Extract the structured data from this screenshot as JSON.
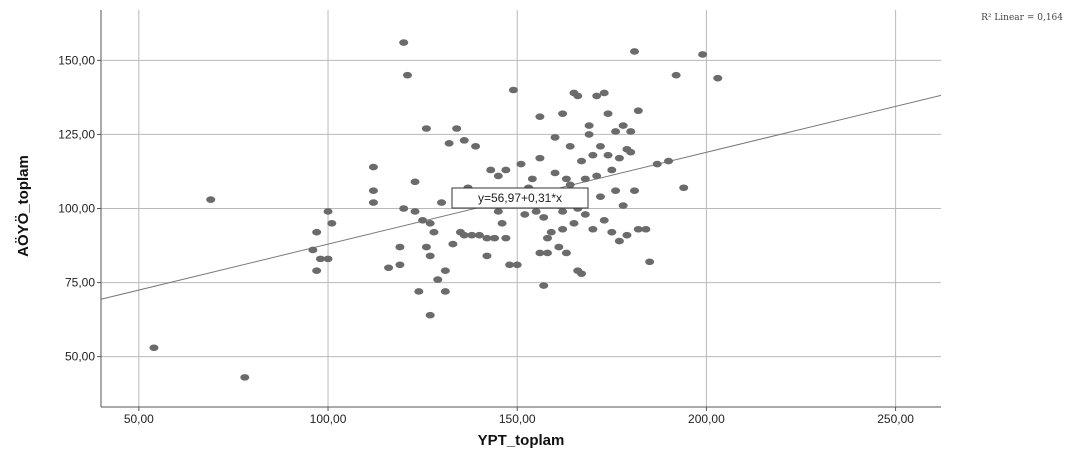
{
  "chart_data": {
    "type": "scatter",
    "xlabel": "YPT_toplam",
    "ylabel": "AÖYÖ_toplam",
    "xlim": [
      40,
      262
    ],
    "ylim": [
      33,
      167
    ],
    "x_ticks": [
      50,
      100,
      150,
      200,
      250
    ],
    "x_tick_labels": [
      "50,00",
      "100,00",
      "150,00",
      "200,00",
      "250,00"
    ],
    "y_ticks": [
      50,
      75,
      100,
      125,
      150
    ],
    "y_tick_labels": [
      "50,00",
      "75,00",
      "100,00",
      "125,00",
      "150,00"
    ],
    "grid": true,
    "fit_line": {
      "intercept": 56.97,
      "slope": 0.31
    },
    "equation_label": "y=56,97+0,31*x",
    "r2_label": "R² Linear = 0,164",
    "point_color": "#6b6b6b",
    "points": [
      [
        54,
        53
      ],
      [
        69,
        103
      ],
      [
        78,
        43
      ],
      [
        96,
        86
      ],
      [
        97,
        92
      ],
      [
        97,
        79
      ],
      [
        98,
        83
      ],
      [
        100,
        83
      ],
      [
        100,
        99
      ],
      [
        101,
        95
      ],
      [
        112,
        114
      ],
      [
        112,
        106
      ],
      [
        112,
        102
      ],
      [
        116,
        80
      ],
      [
        119,
        81
      ],
      [
        119,
        87
      ],
      [
        120,
        156
      ],
      [
        120,
        100
      ],
      [
        121,
        145
      ],
      [
        123,
        109
      ],
      [
        123,
        99
      ],
      [
        124,
        72
      ],
      [
        125,
        96
      ],
      [
        126,
        127
      ],
      [
        126,
        87
      ],
      [
        127,
        84
      ],
      [
        127,
        95
      ],
      [
        127,
        64
      ],
      [
        128,
        92
      ],
      [
        129,
        76
      ],
      [
        130,
        102
      ],
      [
        131,
        79
      ],
      [
        131,
        72
      ],
      [
        132,
        122
      ],
      [
        133,
        88
      ],
      [
        134,
        127
      ],
      [
        135,
        92
      ],
      [
        136,
        123
      ],
      [
        136,
        91
      ],
      [
        137,
        107
      ],
      [
        138,
        91
      ],
      [
        139,
        121
      ],
      [
        140,
        91
      ],
      [
        141,
        105
      ],
      [
        142,
        84
      ],
      [
        142,
        90
      ],
      [
        143,
        113
      ],
      [
        144,
        90
      ],
      [
        145,
        111
      ],
      [
        145,
        99
      ],
      [
        146,
        105
      ],
      [
        146,
        95
      ],
      [
        147,
        90
      ],
      [
        147,
        113
      ],
      [
        148,
        81
      ],
      [
        149,
        140
      ],
      [
        150,
        81
      ],
      [
        150,
        102
      ],
      [
        151,
        115
      ],
      [
        152,
        98
      ],
      [
        153,
        107
      ],
      [
        154,
        110
      ],
      [
        155,
        99
      ],
      [
        156,
        85
      ],
      [
        156,
        131
      ],
      [
        156,
        117
      ],
      [
        157,
        97
      ],
      [
        157,
        74
      ],
      [
        158,
        90
      ],
      [
        158,
        85
      ],
      [
        159,
        92
      ],
      [
        160,
        124
      ],
      [
        160,
        112
      ],
      [
        161,
        101
      ],
      [
        161,
        87
      ],
      [
        162,
        99
      ],
      [
        162,
        132
      ],
      [
        162,
        93
      ],
      [
        163,
        110
      ],
      [
        163,
        85
      ],
      [
        164,
        121
      ],
      [
        164,
        108
      ],
      [
        165,
        139
      ],
      [
        165,
        95
      ],
      [
        166,
        138
      ],
      [
        166,
        100
      ],
      [
        166,
        79
      ],
      [
        167,
        116
      ],
      [
        167,
        78
      ],
      [
        168,
        98
      ],
      [
        168,
        110
      ],
      [
        169,
        128
      ],
      [
        169,
        125
      ],
      [
        170,
        118
      ],
      [
        170,
        93
      ],
      [
        171,
        138
      ],
      [
        171,
        111
      ],
      [
        172,
        104
      ],
      [
        172,
        121
      ],
      [
        173,
        139
      ],
      [
        173,
        96
      ],
      [
        174,
        118
      ],
      [
        174,
        132
      ],
      [
        175,
        113
      ],
      [
        175,
        92
      ],
      [
        176,
        106
      ],
      [
        176,
        126
      ],
      [
        177,
        117
      ],
      [
        177,
        89
      ],
      [
        178,
        128
      ],
      [
        178,
        101
      ],
      [
        179,
        120
      ],
      [
        179,
        91
      ],
      [
        180,
        119
      ],
      [
        180,
        126
      ],
      [
        181,
        153
      ],
      [
        181,
        106
      ],
      [
        182,
        133
      ],
      [
        182,
        93
      ],
      [
        184,
        93
      ],
      [
        185,
        82
      ],
      [
        187,
        115
      ],
      [
        190,
        116
      ],
      [
        192,
        145
      ],
      [
        194,
        107
      ],
      [
        199,
        152
      ],
      [
        203,
        144
      ]
    ]
  }
}
